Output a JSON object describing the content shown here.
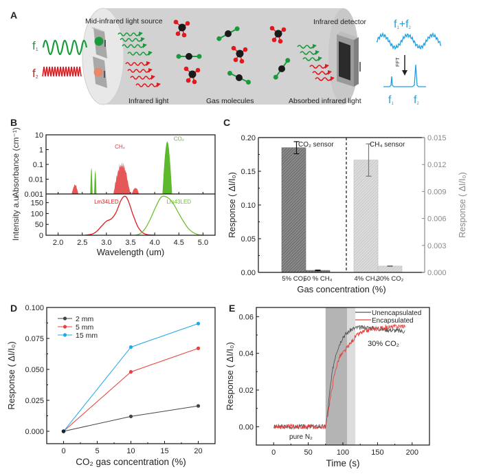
{
  "panels": {
    "A": {
      "letter": "A",
      "labels": {
        "source": "Mid-infrared light source",
        "detector": "Infrared detector",
        "infrared_light": "Infrared light",
        "gas_molecules": "Gas molecules",
        "absorbed_light": "Absorbed infrared light",
        "f1": "f",
        "f1_sub": "1",
        "f2": "f",
        "f2_sub": "2",
        "sum_f": "f",
        "sum_sub1": "1",
        "sum_plus": "+f",
        "sum_sub2": "2",
        "fft": "FFT",
        "peak1": "f",
        "peak1_sub": "1",
        "peak2": "f",
        "peak2_sub": "2"
      },
      "colors": {
        "green": "#1a9a3c",
        "red": "#e0191e",
        "blue": "#1fa0e0",
        "cylinder": "#d2d2d2"
      }
    },
    "B": {
      "letter": "B"
    },
    "C": {
      "letter": "C"
    },
    "D": {
      "letter": "D"
    },
    "E": {
      "letter": "E"
    }
  },
  "chart_data": [
    {
      "id": "B-top",
      "type": "area",
      "title": "",
      "ylabel": "Absorbance (cm⁻¹)",
      "yscale": "log",
      "ylim": [
        0.001,
        10
      ],
      "yticks": [
        "10",
        "1",
        "0.1",
        "0.01",
        "0.001"
      ],
      "xlim": [
        1.75,
        5.25
      ],
      "annotations": [
        "CH₄",
        "CO₂"
      ],
      "series": [
        {
          "name": "CH4",
          "color": "#e23a3a",
          "bands": [
            {
              "center": 2.35,
              "width": 0.14,
              "peak": 0.005
            },
            {
              "center": 3.32,
              "width": 0.35,
              "peak": 0.2
            },
            {
              "center": 3.6,
              "width": 0.15,
              "peak": 0.003
            }
          ]
        },
        {
          "name": "CO2",
          "color": "#5cb82c",
          "bands": [
            {
              "center": 2.0,
              "width": 0.02,
              "peak": 0.0012
            },
            {
              "center": 2.69,
              "width": 0.05,
              "peak": 0.06
            },
            {
              "center": 2.77,
              "width": 0.05,
              "peak": 0.04
            },
            {
              "center": 4.26,
              "width": 0.2,
              "peak": 3.5
            }
          ]
        }
      ]
    },
    {
      "id": "B-bottom",
      "type": "line",
      "xlabel": "Wavelength (um)",
      "ylabel": "Intensity a.u.",
      "xlim": [
        1.75,
        5.25
      ],
      "ylim": [
        0,
        190
      ],
      "xticks": [
        "2.0",
        "2.5",
        "3.0",
        "3.5",
        "4.0",
        "4.5",
        "5.0"
      ],
      "yticks": [
        "0",
        "50",
        "100",
        "150"
      ],
      "series": [
        {
          "name": "Lm34LED",
          "color": "#e0191e",
          "x": [
            2.55,
            2.7,
            2.8,
            2.9,
            3.0,
            3.1,
            3.2,
            3.3,
            3.38,
            3.45,
            3.55,
            3.65,
            3.75,
            3.85,
            4.0
          ],
          "y": [
            0,
            5,
            18,
            42,
            65,
            75,
            105,
            160,
            180,
            160,
            95,
            40,
            12,
            3,
            0
          ]
        },
        {
          "name": "Lm43LED",
          "color": "#6cc030",
          "x": [
            3.6,
            3.7,
            3.8,
            3.9,
            4.0,
            4.1,
            4.18,
            4.3,
            4.4,
            4.5,
            4.6,
            4.7,
            4.8,
            4.9,
            5.0
          ],
          "y": [
            0,
            8,
            30,
            70,
            120,
            165,
            180,
            168,
            140,
            100,
            62,
            30,
            12,
            3,
            0
          ]
        }
      ]
    },
    {
      "id": "C",
      "type": "bar",
      "xlabel": "Gas concentration (%)",
      "ylabel_left": "Response ( ΔI/I₀)",
      "ylabel_right": "Response ( ΔI/I₀)",
      "ylim_left": [
        0,
        0.2
      ],
      "ylim_right": [
        0,
        0.015
      ],
      "yticks_left": [
        "0.00",
        "0.05",
        "0.10",
        "0.15",
        "0.20"
      ],
      "yticks_right": [
        "0.000",
        "0.003",
        "0.006",
        "0.009",
        "0.012",
        "0.015"
      ],
      "groups": [
        {
          "label": "CO₂ sensor",
          "axis": "left",
          "color": "#777777",
          "categories": [
            "5% CO₂",
            "50 % CH₄"
          ],
          "values": [
            0.185,
            0.003
          ],
          "errors": [
            0.009,
            0.0005
          ]
        },
        {
          "label": "CH₄ sensor",
          "axis": "right",
          "color": "#cfcfcf",
          "categories": [
            "4% CH₄",
            "30% CO₂"
          ],
          "values": [
            0.0125,
            0.0007
          ],
          "errors": [
            0.0018,
            3e-05
          ]
        }
      ]
    },
    {
      "id": "D",
      "type": "line",
      "xlabel": "CO₂ gas concentration (%)",
      "ylabel": "Response ( ΔI/I₀)",
      "xlim": [
        -2.5,
        22.5
      ],
      "ylim": [
        -0.01,
        0.1
      ],
      "xticks": [
        "0",
        "5",
        "10",
        "15",
        "20"
      ],
      "yticks": [
        "0.000",
        "0.025",
        "0.050",
        "0.075",
        "0.100"
      ],
      "legend": "top-left",
      "x": [
        0,
        10,
        20
      ],
      "series": [
        {
          "name": "2 mm",
          "color": "#444444",
          "values": [
            0,
            0.012,
            0.0205
          ]
        },
        {
          "name": "5 mm",
          "color": "#e8403c",
          "values": [
            0,
            0.048,
            0.067
          ]
        },
        {
          "name": "15 mm",
          "color": "#1fa8e6",
          "values": [
            0,
            0.068,
            0.087
          ]
        }
      ]
    },
    {
      "id": "E",
      "type": "line",
      "xlabel": "Time (s)",
      "ylabel": "Response ( ΔI/I₀)",
      "xlim": [
        -25,
        225
      ],
      "ylim": [
        -0.01,
        0.065
      ],
      "xticks": [
        "0",
        "50",
        "100",
        "150",
        "200"
      ],
      "yticks": [
        "0.00",
        "0.02",
        "0.04",
        "0.06"
      ],
      "legend": "top-right",
      "annotations": [
        "pure N₂",
        "30% CO₂"
      ],
      "shaded_regions": [
        {
          "from": 75,
          "to": 106,
          "color": "#b4b4b4"
        },
        {
          "from": 106,
          "to": 118,
          "color": "#dcdcdc"
        }
      ],
      "series": [
        {
          "name": "Unencapsulated",
          "color": "#555555",
          "x": [
            0,
            75,
            78,
            82,
            86,
            90,
            95,
            100,
            106,
            112,
            120,
            140,
            160,
            190
          ],
          "y": [
            0,
            0,
            0.008,
            0.022,
            0.033,
            0.04,
            0.045,
            0.049,
            0.051,
            0.053,
            0.054,
            0.054,
            0.053,
            0.052
          ]
        },
        {
          "name": "Encapsulated",
          "color": "#e8403c",
          "x": [
            0,
            75,
            78,
            82,
            86,
            90,
            95,
            100,
            106,
            112,
            118,
            125,
            140,
            160,
            190
          ],
          "y": [
            0,
            0,
            0.006,
            0.016,
            0.025,
            0.032,
            0.038,
            0.04,
            0.043,
            0.046,
            0.049,
            0.051,
            0.053,
            0.054,
            0.055
          ]
        }
      ]
    }
  ]
}
